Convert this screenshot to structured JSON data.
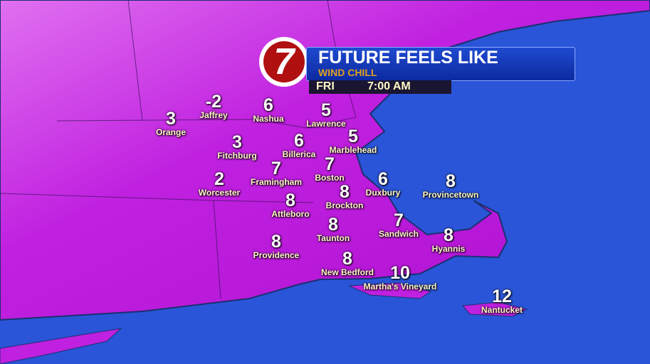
{
  "header": {
    "title": "FUTURE FEELS LIKE",
    "subtitle": "WIND CHILL",
    "day": "FRI",
    "time": "7:00 AM",
    "logo": "7"
  },
  "colors": {
    "land": "#c020e0",
    "ocean": "#2a55d8",
    "banner": "#1f4ad0",
    "subtitle": "#e0a020"
  },
  "cities": [
    {
      "name": "Orange",
      "value": "3"
    },
    {
      "name": "Jaffrey",
      "value": "-2"
    },
    {
      "name": "Nashua",
      "value": "6"
    },
    {
      "name": "Lawrence",
      "value": "5"
    },
    {
      "name": "Marblehead",
      "value": "5"
    },
    {
      "name": "Fitchburg",
      "value": "3"
    },
    {
      "name": "Billerica",
      "value": "6"
    },
    {
      "name": "Framingham",
      "value": "7"
    },
    {
      "name": "Boston",
      "value": "7"
    },
    {
      "name": "Worcester",
      "value": "2"
    },
    {
      "name": "Duxbury",
      "value": "6"
    },
    {
      "name": "Provincetown",
      "value": "8"
    },
    {
      "name": "Attleboro",
      "value": "8"
    },
    {
      "name": "Brockton",
      "value": "8"
    },
    {
      "name": "Taunton",
      "value": "8"
    },
    {
      "name": "Sandwich",
      "value": "7"
    },
    {
      "name": "Providence",
      "value": "8"
    },
    {
      "name": "Hyannis",
      "value": "8"
    },
    {
      "name": "New Bedford",
      "value": "8"
    },
    {
      "name": "Martha's Vineyard",
      "value": "10"
    },
    {
      "name": "Nantucket",
      "value": "12"
    }
  ]
}
